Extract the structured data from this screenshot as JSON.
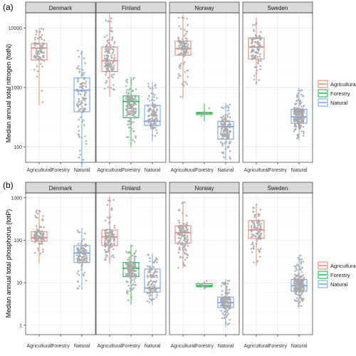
{
  "chart_data": [
    {
      "type": "box",
      "panel_tag": "(a)",
      "ylabel": "Median annual total nitrogen (totN)",
      "yscale": "log",
      "ylim": [
        55,
        18000
      ],
      "yticks": [
        100,
        1000,
        10000
      ],
      "yticklabels": [
        "100",
        "1000",
        "10000"
      ],
      "facets": [
        "Denmark",
        "Finland",
        "Norway",
        "Sweden"
      ],
      "categories": [
        "Agricultural",
        "Forestry",
        "Natural"
      ],
      "grid": true,
      "legend": {
        "position": "right",
        "entries": [
          "Agricultural",
          "Forestry",
          "Natural"
        ]
      },
      "boxes": [
        {
          "facet": "Denmark",
          "category": "Agricultural",
          "min": 500,
          "q1": 2900,
          "median": 4600,
          "q3": 5500,
          "max": 10000,
          "n": 90
        },
        {
          "facet": "Denmark",
          "category": "Natural",
          "min": 45,
          "q1": 390,
          "median": 900,
          "q3": 1450,
          "max": 4200,
          "n": 110
        },
        {
          "facet": "Finland",
          "category": "Agricultural",
          "min": 700,
          "q1": 1850,
          "median": 2800,
          "q3": 4800,
          "max": 17000,
          "n": 130
        },
        {
          "facet": "Finland",
          "category": "Forestry",
          "min": 100,
          "q1": 310,
          "median": 580,
          "q3": 720,
          "max": 1500,
          "n": 160
        },
        {
          "facet": "Finland",
          "category": "Natural",
          "min": 125,
          "q1": 230,
          "median": 270,
          "q3": 500,
          "max": 1250,
          "n": 110
        },
        {
          "facet": "Norway",
          "category": "Agricultural",
          "min": 650,
          "q1": 3500,
          "median": 4500,
          "q3": 6000,
          "max": 17000,
          "n": 120
        },
        {
          "facet": "Norway",
          "category": "Forestry",
          "min": 270,
          "q1": 350,
          "median": 370,
          "q3": 380,
          "max": 530,
          "n": 12
        },
        {
          "facet": "Norway",
          "category": "Natural",
          "min": 60,
          "q1": 135,
          "median": 220,
          "q3": 270,
          "max": 540,
          "n": 140
        },
        {
          "facet": "Sweden",
          "category": "Agricultural",
          "min": 1100,
          "q1": 3000,
          "median": 4800,
          "q3": 6800,
          "max": 15000,
          "n": 100
        },
        {
          "facet": "Sweden",
          "category": "Natural",
          "min": 130,
          "q1": 250,
          "median": 320,
          "q3": 430,
          "max": 1000,
          "n": 190
        }
      ]
    },
    {
      "type": "box",
      "panel_tag": "(b)",
      "ylabel": "Median annual total phosphorus (totP)",
      "yscale": "log",
      "ylim": [
        0.6,
        1300
      ],
      "yticks": [
        1,
        10,
        100,
        1000
      ],
      "yticklabels": [
        "1",
        "10",
        "100",
        "1000"
      ],
      "facets": [
        "Denmark",
        "Finland",
        "Norway",
        "Sweden"
      ],
      "categories": [
        "Agricultural",
        "Forestry",
        "Natural"
      ],
      "grid": true,
      "legend": {
        "position": "right",
        "entries": [
          "Agricultural",
          "Forestry",
          "Natural"
        ]
      },
      "boxes": [
        {
          "facet": "Denmark",
          "category": "Agricultural",
          "min": 28,
          "q1": 95,
          "median": 115,
          "q3": 160,
          "max": 520,
          "n": 90
        },
        {
          "facet": "Denmark",
          "category": "Natural",
          "min": 7,
          "q1": 30,
          "median": 50,
          "q3": 75,
          "max": 195,
          "n": 110
        },
        {
          "facet": "Finland",
          "category": "Agricultural",
          "min": 28,
          "q1": 75,
          "median": 120,
          "q3": 175,
          "max": 1100,
          "n": 130
        },
        {
          "facet": "Finland",
          "category": "Forestry",
          "min": 3,
          "q1": 14,
          "median": 22,
          "q3": 30,
          "max": 80,
          "n": 160
        },
        {
          "facet": "Finland",
          "category": "Natural",
          "min": 3,
          "q1": 6,
          "median": 7.5,
          "q3": 21,
          "max": 50,
          "n": 110
        },
        {
          "facet": "Norway",
          "category": "Agricultural",
          "min": 22,
          "q1": 85,
          "median": 150,
          "q3": 220,
          "max": 820,
          "n": 120
        },
        {
          "facet": "Norway",
          "category": "Forestry",
          "min": 7,
          "q1": 8,
          "median": 8.5,
          "q3": 9.5,
          "max": 11,
          "n": 12
        },
        {
          "facet": "Norway",
          "category": "Natural",
          "min": 0.9,
          "q1": 2.6,
          "median": 3.4,
          "q3": 4.6,
          "max": 12,
          "n": 140
        },
        {
          "facet": "Sweden",
          "category": "Agricultural",
          "min": 25,
          "q1": 110,
          "median": 175,
          "q3": 290,
          "max": 700,
          "n": 100
        },
        {
          "facet": "Sweden",
          "category": "Natural",
          "min": 2.5,
          "q1": 6.3,
          "median": 8.5,
          "q3": 12,
          "max": 45,
          "n": 190
        }
      ]
    }
  ],
  "colors": {
    "Agricultural": "#f8766d",
    "Forestry": "#00ba38",
    "Natural": "#619cff",
    "jitter": "#a8a8a8",
    "panel_border": "#333333",
    "strip_fill": "#d9d9d9",
    "grid_major": "#e8e8e8",
    "grid_minor": "#f4f4f4"
  }
}
